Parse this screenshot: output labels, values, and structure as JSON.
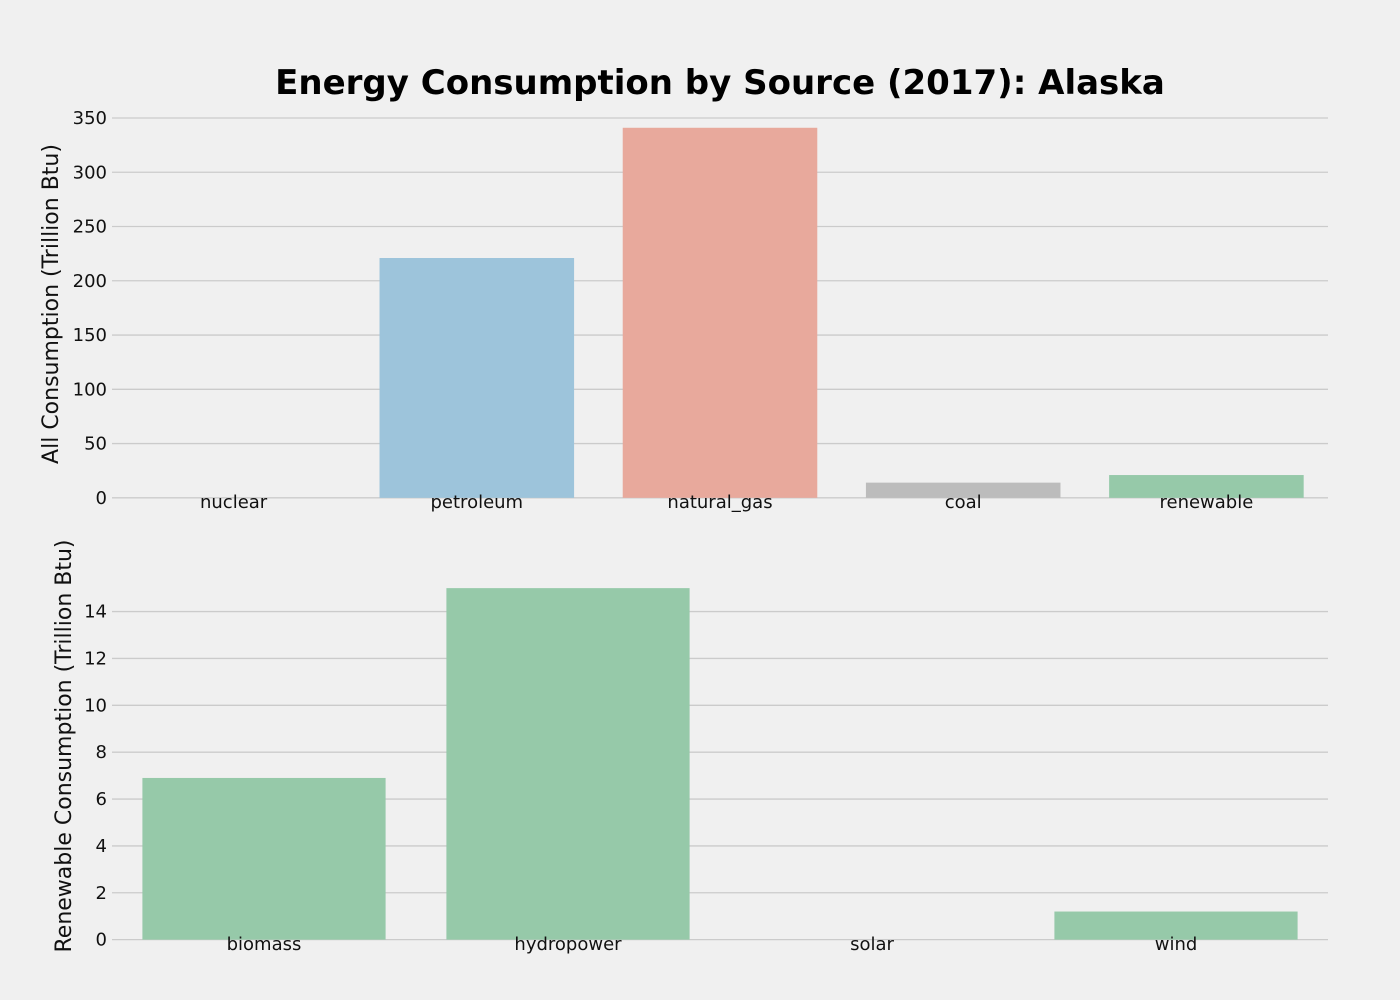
{
  "colors": {
    "background": "#f0f0f0",
    "grid": "#cbcbcb",
    "blue": "#9dc4db",
    "red": "#e8a99c",
    "gray": "#bcbcbc",
    "green": "#96c9a9"
  },
  "chart_data": [
    {
      "type": "bar",
      "title": "Energy Consumption by Source (2017): Alaska",
      "ylabel": "All Consumption (Trillion Btu)",
      "xlabel": "",
      "categories": [
        "nuclear",
        "petroleum",
        "natural_gas",
        "coal",
        "renewable"
      ],
      "values": [
        0,
        221,
        341,
        14,
        21
      ],
      "bar_colors": [
        "#9dc4db",
        "#9dc4db",
        "#e8a99c",
        "#bcbcbc",
        "#96c9a9"
      ],
      "yticks": [
        0,
        50,
        100,
        150,
        200,
        250,
        300,
        350
      ],
      "ylim": [
        -2,
        350
      ],
      "grid": true
    },
    {
      "type": "bar",
      "title": "",
      "ylabel": "Renewable Consumption (Trillion Btu)",
      "xlabel": "",
      "categories": [
        "biomass",
        "hydropower",
        "solar",
        "wind"
      ],
      "values": [
        6.9,
        15.0,
        0,
        1.2
      ],
      "bar_colors": [
        "#96c9a9",
        "#96c9a9",
        "#96c9a9",
        "#96c9a9"
      ],
      "yticks": [
        0,
        2,
        4,
        6,
        8,
        10,
        12,
        14
      ],
      "ylim": [
        -0.1,
        16.2
      ],
      "grid": true
    }
  ]
}
